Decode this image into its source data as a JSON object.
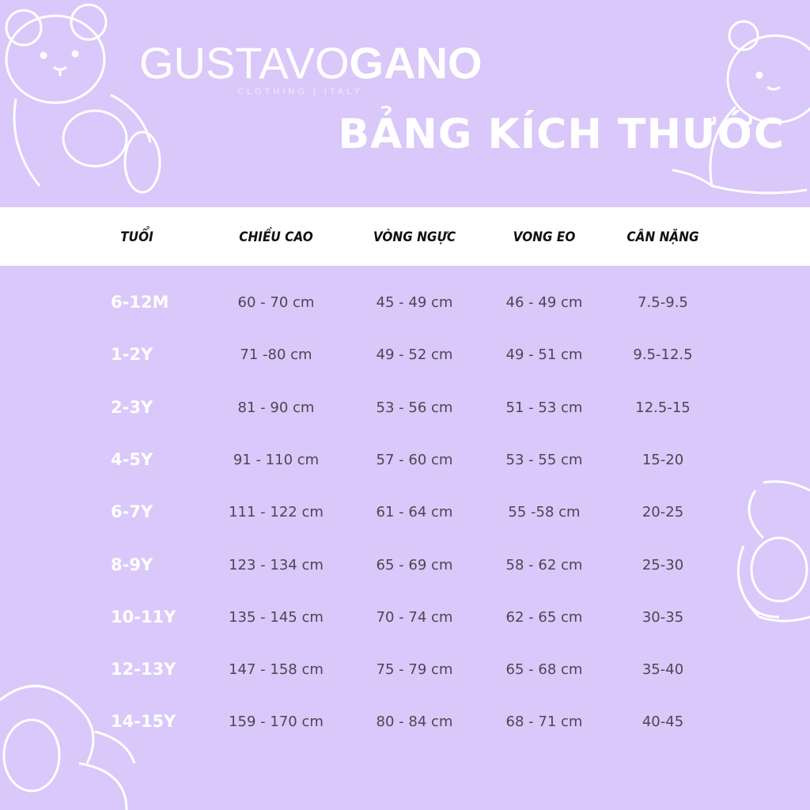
{
  "brand": {
    "name_light": "GUSTAVO",
    "name_bold": "GANO",
    "tagline": "CLOTHING | ITALY"
  },
  "title": "BẢNG KÍCH THƯỚC",
  "colors": {
    "background": "#d9c8f9",
    "header_band": "#ffffff",
    "age_text": "#ffffff",
    "value_text": "#4a4754"
  },
  "table": {
    "headers": [
      "TUỔI",
      "CHIỀU CAO",
      "VÒNG NGỰC",
      "VONG EO",
      "CÂN NẶNG"
    ],
    "rows": [
      [
        "6-12M",
        "60 - 70 cm",
        "45 - 49 cm",
        "46 - 49 cm",
        "7.5-9.5"
      ],
      [
        "1-2Y",
        "71 -80 cm",
        "49 - 52 cm",
        "49 - 51 cm",
        "9.5-12.5"
      ],
      [
        "2-3Y",
        "81 - 90 cm",
        "53 - 56 cm",
        "51 - 53 cm",
        "12.5-15"
      ],
      [
        "4-5Y",
        "91 - 110 cm",
        "57 - 60 cm",
        "53 - 55 cm",
        "15-20"
      ],
      [
        "6-7Y",
        "111 - 122 cm",
        "61 - 64 cm",
        "55 -58 cm",
        "20-25"
      ],
      [
        "8-9Y",
        "123 - 134 cm",
        "65 - 69 cm",
        "58 - 62 cm",
        "25-30"
      ],
      [
        "10-11Y",
        "135 - 145 cm",
        "70 - 74 cm",
        "62 - 65 cm",
        "30-35"
      ],
      [
        "12-13Y",
        "147 - 158 cm",
        "75 - 79 cm",
        "65 - 68 cm",
        "35-40"
      ],
      [
        "14-15Y",
        "159 - 170 cm",
        "80 - 84 cm",
        "68 - 71 cm",
        "40-45"
      ]
    ]
  }
}
